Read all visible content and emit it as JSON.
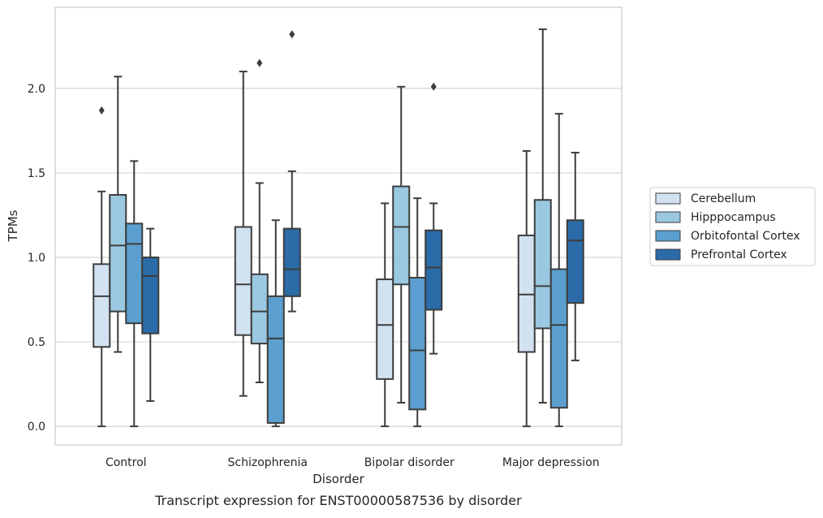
{
  "chart_data": {
    "type": "box",
    "caption": "Transcript expression for ENST00000587536 by disorder",
    "xlabel": "Disorder",
    "ylabel": "TPMs",
    "ylim": [
      -0.11,
      2.48
    ],
    "yticks": [
      "0.0",
      "0.5",
      "1.0",
      "1.5",
      "2.0"
    ],
    "grid": true,
    "legend_position": "right",
    "categories": [
      "Control",
      "Schizophrenia",
      "Bipolar disorder",
      "Major depression"
    ],
    "series": [
      {
        "name": "Cerebellum",
        "color": "#d2e2f1",
        "boxes": [
          {
            "whislo": 0.0,
            "q1": 0.47,
            "med": 0.77,
            "q3": 0.96,
            "whishi": 1.39,
            "fliers": [
              1.87
            ]
          },
          {
            "whislo": 0.18,
            "q1": 0.54,
            "med": 0.84,
            "q3": 1.18,
            "whishi": 2.1,
            "fliers": []
          },
          {
            "whislo": 0.0,
            "q1": 0.28,
            "med": 0.6,
            "q3": 0.87,
            "whishi": 1.32,
            "fliers": []
          },
          {
            "whislo": 0.0,
            "q1": 0.44,
            "med": 0.78,
            "q3": 1.13,
            "whishi": 1.63,
            "fliers": []
          }
        ]
      },
      {
        "name": "Hipppocampus",
        "color": "#9ac8e0",
        "boxes": [
          {
            "whislo": 0.44,
            "q1": 0.68,
            "med": 1.07,
            "q3": 1.37,
            "whishi": 2.07,
            "fliers": []
          },
          {
            "whislo": 0.26,
            "q1": 0.49,
            "med": 0.68,
            "q3": 0.9,
            "whishi": 1.44,
            "fliers": [
              2.15
            ]
          },
          {
            "whislo": 0.14,
            "q1": 0.84,
            "med": 1.18,
            "q3": 1.42,
            "whishi": 2.01,
            "fliers": []
          },
          {
            "whislo": 0.14,
            "q1": 0.58,
            "med": 0.83,
            "q3": 1.34,
            "whishi": 2.35,
            "fliers": []
          }
        ]
      },
      {
        "name": "Orbitofontal Cortex",
        "color": "#5a9fcf",
        "boxes": [
          {
            "whislo": 0.0,
            "q1": 0.61,
            "med": 1.08,
            "q3": 1.2,
            "whishi": 1.57,
            "fliers": []
          },
          {
            "whislo": 0.0,
            "q1": 0.02,
            "med": 0.52,
            "q3": 0.77,
            "whishi": 1.22,
            "fliers": []
          },
          {
            "whislo": 0.0,
            "q1": 0.1,
            "med": 0.45,
            "q3": 0.88,
            "whishi": 1.35,
            "fliers": []
          },
          {
            "whislo": 0.0,
            "q1": 0.11,
            "med": 0.6,
            "q3": 0.93,
            "whishi": 1.85,
            "fliers": []
          }
        ]
      },
      {
        "name": "Prefrontal Cortex",
        "color": "#2b6ba8",
        "boxes": [
          {
            "whislo": 0.15,
            "q1": 0.55,
            "med": 0.89,
            "q3": 1.0,
            "whishi": 1.17,
            "fliers": []
          },
          {
            "whislo": 0.68,
            "q1": 0.77,
            "med": 0.93,
            "q3": 1.17,
            "whishi": 1.51,
            "fliers": [
              2.32
            ]
          },
          {
            "whislo": 0.43,
            "q1": 0.69,
            "med": 0.94,
            "q3": 1.16,
            "whishi": 1.32,
            "fliers": [
              2.01
            ]
          },
          {
            "whislo": 0.39,
            "q1": 0.73,
            "med": 1.1,
            "q3": 1.22,
            "whishi": 1.62,
            "fliers": []
          }
        ]
      }
    ]
  }
}
